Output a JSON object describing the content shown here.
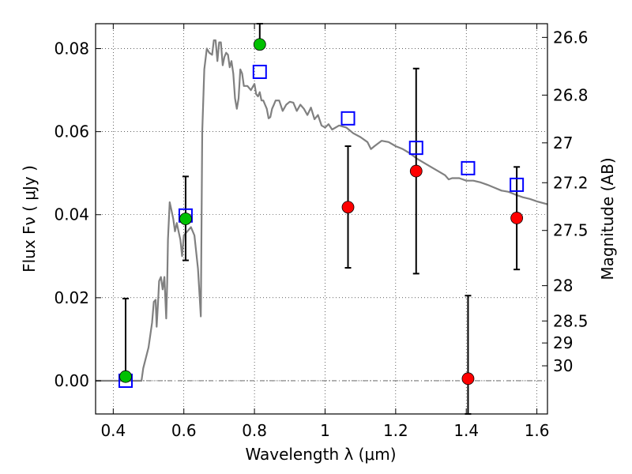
{
  "chart_data": {
    "type": "scatter",
    "xlabel": "Wavelength  λ (μm)",
    "ylabel": "Flux  Fν  ( μJy )",
    "y2label": "Magnitude (AB)",
    "xlim": [
      0.35,
      1.63
    ],
    "ylim": [
      -0.008,
      0.086
    ],
    "grid": true,
    "x_ticks": [
      {
        "value": 0.4,
        "label": "0.4"
      },
      {
        "value": 0.6,
        "label": "0.6"
      },
      {
        "value": 0.8,
        "label": "0.8"
      },
      {
        "value": 1.0,
        "label": "1"
      },
      {
        "value": 1.2,
        "label": "1.2"
      },
      {
        "value": 1.4,
        "label": "1.4"
      },
      {
        "value": 1.6,
        "label": "1.6"
      }
    ],
    "y_ticks": [
      {
        "value": 0.0,
        "label": "0.00"
      },
      {
        "value": 0.02,
        "label": "0.02"
      },
      {
        "value": 0.04,
        "label": "0.04"
      },
      {
        "value": 0.06,
        "label": "0.06"
      },
      {
        "value": 0.08,
        "label": "0.08"
      }
    ],
    "y2_ticks": [
      {
        "label": "26.6",
        "flux": 0.0827
      },
      {
        "label": "26.8",
        "flux": 0.0688
      },
      {
        "label": "27",
        "flux": 0.0573
      },
      {
        "label": "27.2",
        "flux": 0.0477
      },
      {
        "label": "27.5",
        "flux": 0.0362
      },
      {
        "label": "28",
        "flux": 0.0229
      },
      {
        "label": "28.5",
        "flux": 0.0144
      },
      {
        "label": "29",
        "flux": 0.0091
      },
      {
        "label": "30",
        "flux": 0.0036
      }
    ],
    "series": [
      {
        "kind": "line",
        "color": "#808080",
        "points": [
          [
            0.35,
            0.0
          ],
          [
            0.48,
            0.0
          ],
          [
            0.485,
            0.003
          ],
          [
            0.5,
            0.008
          ],
          [
            0.51,
            0.014
          ],
          [
            0.515,
            0.019
          ],
          [
            0.52,
            0.0195
          ],
          [
            0.523,
            0.013
          ],
          [
            0.527,
            0.019
          ],
          [
            0.53,
            0.024
          ],
          [
            0.535,
            0.025
          ],
          [
            0.54,
            0.022
          ],
          [
            0.545,
            0.025
          ],
          [
            0.55,
            0.015
          ],
          [
            0.553,
            0.024
          ],
          [
            0.555,
            0.034
          ],
          [
            0.56,
            0.043
          ],
          [
            0.565,
            0.041
          ],
          [
            0.57,
            0.039
          ],
          [
            0.575,
            0.036
          ],
          [
            0.58,
            0.038
          ],
          [
            0.585,
            0.036
          ],
          [
            0.59,
            0.034
          ],
          [
            0.595,
            0.03
          ],
          [
            0.6,
            0.035
          ],
          [
            0.61,
            0.036
          ],
          [
            0.62,
            0.037
          ],
          [
            0.63,
            0.035
          ],
          [
            0.64,
            0.027
          ],
          [
            0.645,
            0.02
          ],
          [
            0.648,
            0.0155
          ],
          [
            0.652,
            0.06
          ],
          [
            0.658,
            0.075
          ],
          [
            0.665,
            0.08
          ],
          [
            0.672,
            0.079
          ],
          [
            0.68,
            0.0785
          ],
          [
            0.685,
            0.082
          ],
          [
            0.69,
            0.082
          ],
          [
            0.695,
            0.077
          ],
          [
            0.7,
            0.0815
          ],
          [
            0.705,
            0.0815
          ],
          [
            0.71,
            0.076
          ],
          [
            0.715,
            0.078
          ],
          [
            0.72,
            0.079
          ],
          [
            0.725,
            0.0785
          ],
          [
            0.73,
            0.0755
          ],
          [
            0.735,
            0.077
          ],
          [
            0.74,
            0.074
          ],
          [
            0.745,
            0.068
          ],
          [
            0.75,
            0.0655
          ],
          [
            0.755,
            0.068
          ],
          [
            0.76,
            0.075
          ],
          [
            0.765,
            0.074
          ],
          [
            0.77,
            0.071
          ],
          [
            0.78,
            0.071
          ],
          [
            0.79,
            0.07
          ],
          [
            0.8,
            0.0715
          ],
          [
            0.805,
            0.069
          ],
          [
            0.81,
            0.0685
          ],
          [
            0.815,
            0.0695
          ],
          [
            0.82,
            0.0675
          ],
          [
            0.825,
            0.0675
          ],
          [
            0.83,
            0.0665
          ],
          [
            0.835,
            0.0655
          ],
          [
            0.84,
            0.0632
          ],
          [
            0.845,
            0.0635
          ],
          [
            0.85,
            0.0655
          ],
          [
            0.855,
            0.0665
          ],
          [
            0.86,
            0.0675
          ],
          [
            0.87,
            0.0675
          ],
          [
            0.88,
            0.065
          ],
          [
            0.89,
            0.0665
          ],
          [
            0.9,
            0.0672
          ],
          [
            0.91,
            0.067
          ],
          [
            0.92,
            0.065
          ],
          [
            0.93,
            0.0665
          ],
          [
            0.94,
            0.0655
          ],
          [
            0.95,
            0.064
          ],
          [
            0.96,
            0.0658
          ],
          [
            0.97,
            0.063
          ],
          [
            0.98,
            0.064
          ],
          [
            0.99,
            0.0615
          ],
          [
            1.0,
            0.061
          ],
          [
            1.01,
            0.0618
          ],
          [
            1.02,
            0.0605
          ],
          [
            1.04,
            0.0615
          ],
          [
            1.06,
            0.061
          ],
          [
            1.08,
            0.0596
          ],
          [
            1.1,
            0.0587
          ],
          [
            1.12,
            0.0575
          ],
          [
            1.13,
            0.0558
          ],
          [
            1.14,
            0.0565
          ],
          [
            1.16,
            0.0578
          ],
          [
            1.18,
            0.0575
          ],
          [
            1.2,
            0.0565
          ],
          [
            1.22,
            0.0558
          ],
          [
            1.24,
            0.0548
          ],
          [
            1.26,
            0.0535
          ],
          [
            1.28,
            0.0525
          ],
          [
            1.3,
            0.0515
          ],
          [
            1.32,
            0.0505
          ],
          [
            1.34,
            0.0495
          ],
          [
            1.35,
            0.0485
          ],
          [
            1.36,
            0.0488
          ],
          [
            1.38,
            0.0488
          ],
          [
            1.4,
            0.0482
          ],
          [
            1.42,
            0.0482
          ],
          [
            1.44,
            0.0478
          ],
          [
            1.46,
            0.0472
          ],
          [
            1.48,
            0.0465
          ],
          [
            1.5,
            0.0458
          ],
          [
            1.52,
            0.0455
          ],
          [
            1.54,
            0.0448
          ],
          [
            1.56,
            0.0442
          ],
          [
            1.58,
            0.0438
          ],
          [
            1.6,
            0.0432
          ],
          [
            1.63,
            0.0425
          ]
        ]
      },
      {
        "kind": "squares",
        "color": "#0000ff",
        "points": [
          [
            0.435,
            0.0
          ],
          [
            0.605,
            0.0398
          ],
          [
            0.815,
            0.0744
          ],
          [
            1.065,
            0.0632
          ],
          [
            1.258,
            0.0561
          ],
          [
            1.405,
            0.0512
          ],
          [
            1.543,
            0.0472
          ]
        ]
      },
      {
        "kind": "circles",
        "color": "#00c000",
        "points": [
          {
            "x": 0.435,
            "y": 0.001,
            "err_low": 0.0,
            "err_high": 0.0198
          },
          {
            "x": 0.605,
            "y": 0.039,
            "err_low": 0.029,
            "err_high": 0.0492
          },
          {
            "x": 0.815,
            "y": 0.081,
            "err_low": 0.081,
            "err_high": 0.086
          }
        ]
      },
      {
        "kind": "circles",
        "color": "#ff0000",
        "points": [
          {
            "x": 1.065,
            "y": 0.0418,
            "err_low": 0.0272,
            "err_high": 0.0565
          },
          {
            "x": 1.258,
            "y": 0.0505,
            "err_low": 0.0258,
            "err_high": 0.0752
          },
          {
            "x": 1.405,
            "y": 0.0005,
            "err_low": -0.008,
            "err_high": 0.0205
          },
          {
            "x": 1.543,
            "y": 0.0392,
            "err_low": 0.0268,
            "err_high": 0.0515
          }
        ]
      }
    ]
  }
}
